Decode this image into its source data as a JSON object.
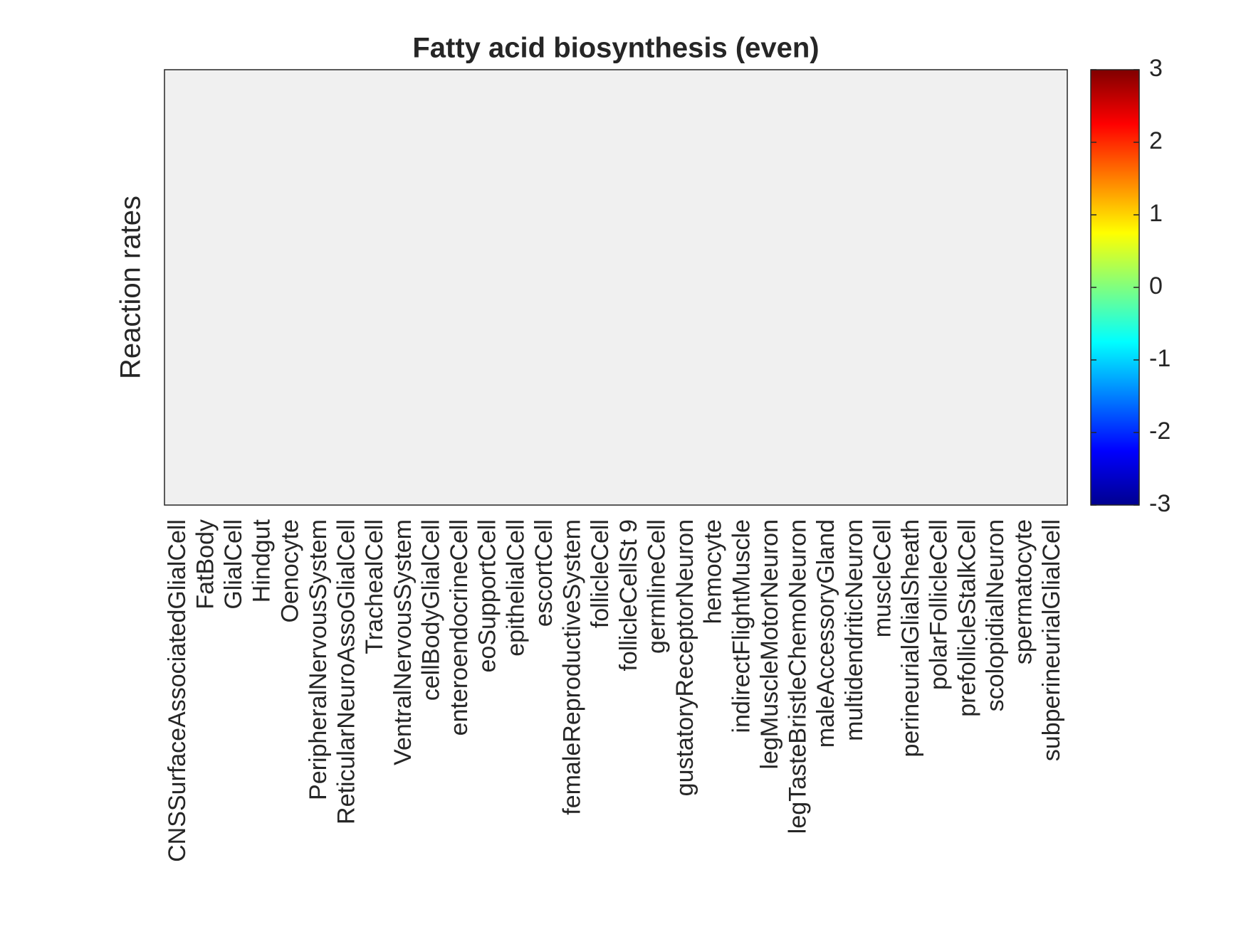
{
  "chart_data": {
    "type": "heatmap",
    "title": "Fatty acid biosynthesis (even)",
    "ylabel": "Reaction rates",
    "categories": [
      "CNSSurfaceAssociatedGlialCell",
      "FatBody",
      "GlialCell",
      "Hindgut",
      "Oenocyte",
      "PeripheralNervousSystem",
      "ReticularNeuroAssoGlialCell",
      "TrachealCell",
      "VentralNervousSystem",
      "cellBodyGlialCell",
      "enteroendocrineCell",
      "eoSupportCell",
      "epithelialCell",
      "escortCell",
      "femaleReproductiveSystem",
      "follicleCell",
      "follicleCellSt 9",
      "germlineCell",
      "gustatoryReceptorNeuron",
      "hemocyte",
      "indirectFlightMuscle",
      "legMuscleMotorNeuron",
      "legTasteBristleChemoNeuron",
      "maleAccessoryGland",
      "multidendriticNeuron",
      "muscleCell",
      "perineurialGlialSheath",
      "polarFollicleCell",
      "prefollicleStalkCell",
      "scolopidialNeuron",
      "spermatocyte",
      "subperineurialGlialCell"
    ],
    "colormap": "jet",
    "background_color": "#f0f0f0",
    "clim": [
      -3,
      3
    ],
    "cticks": [
      -3,
      -2,
      -1,
      0,
      1,
      2,
      3
    ]
  }
}
